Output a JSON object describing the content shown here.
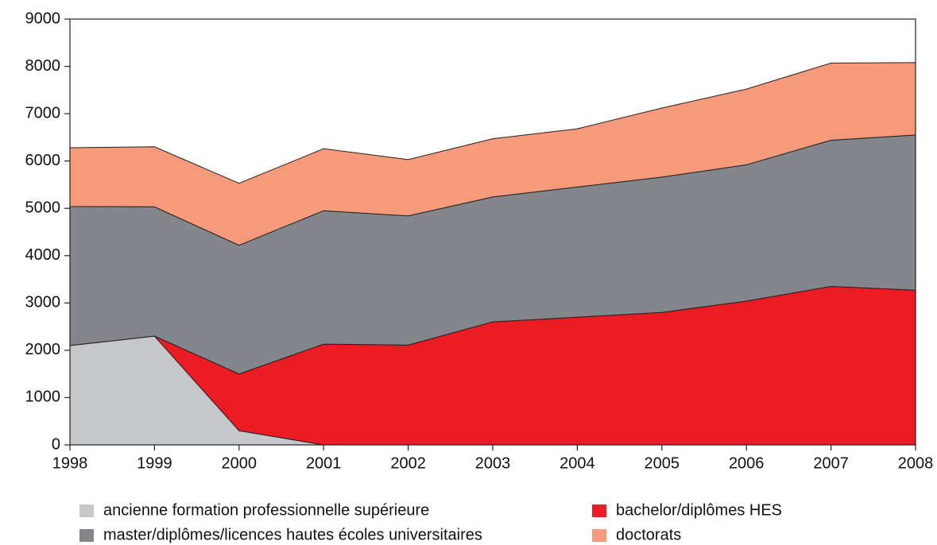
{
  "chart_data": {
    "type": "stacked_area",
    "x": [
      1998,
      1999,
      2000,
      2001,
      2002,
      2003,
      2004,
      2005,
      2006,
      2007,
      2008
    ],
    "series": [
      {
        "name": "ancienne formation professionnelle supérieure",
        "color": "#c5c7ca",
        "values": [
          2100,
          2300,
          300,
          0,
          0,
          0,
          0,
          0,
          0,
          0,
          0
        ]
      },
      {
        "name": "bachelor/diplômes HES",
        "color": "#ec1c24",
        "values": [
          0,
          0,
          1200,
          2130,
          2110,
          2600,
          2700,
          2800,
          3040,
          3350,
          3270
        ]
      },
      {
        "name": "master/diplômes/licences hautes écoles universitaires",
        "color": "#85868b",
        "values": [
          2940,
          2730,
          2720,
          2820,
          2730,
          2640,
          2750,
          2860,
          2880,
          3090,
          3280
        ]
      },
      {
        "name": "doctorats",
        "color": "#f59b7b",
        "values": [
          1240,
          1270,
          1310,
          1310,
          1190,
          1230,
          1230,
          1460,
          1600,
          1630,
          1530
        ]
      }
    ],
    "xlim": [
      1998,
      2008
    ],
    "xticks": [
      1998,
      1999,
      2000,
      2001,
      2002,
      2003,
      2004,
      2005,
      2006,
      2007,
      2008
    ],
    "ylim": [
      0,
      9000
    ],
    "yticks": [
      0,
      1000,
      2000,
      3000,
      4000,
      5000,
      6000,
      7000,
      8000,
      9000
    ],
    "grid": false
  }
}
